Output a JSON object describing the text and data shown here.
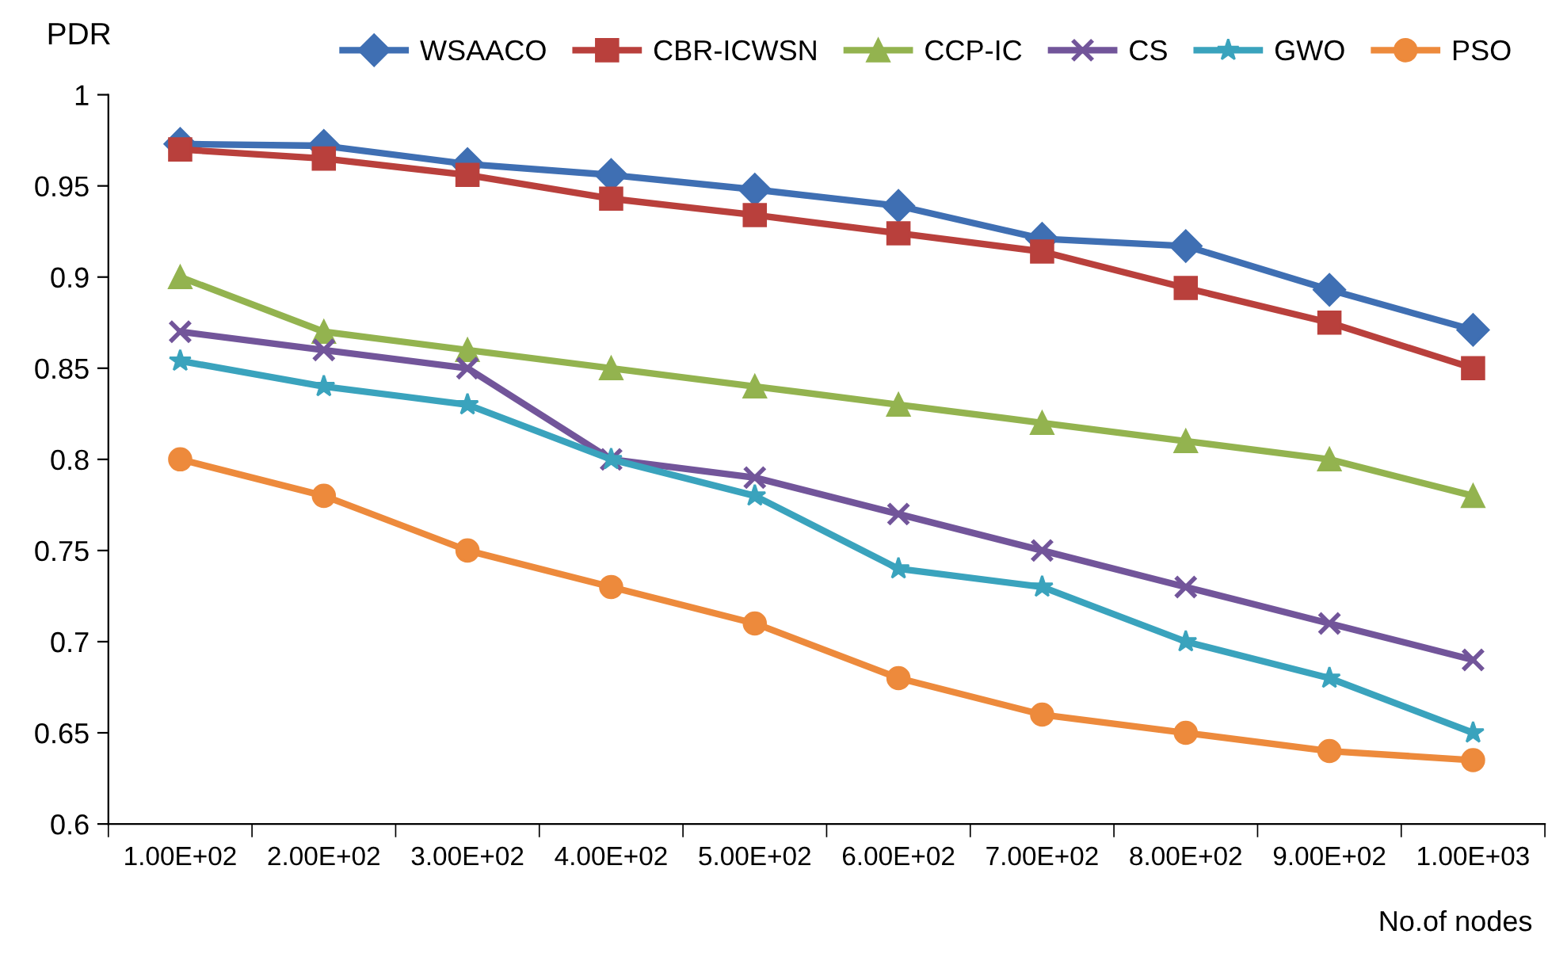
{
  "chart_data": {
    "type": "line",
    "ylabel": "PDR",
    "xlabel": "No.of nodes",
    "categories": [
      "1.00E+02",
      "2.00E+02",
      "3.00E+02",
      "4.00E+02",
      "5.00E+02",
      "6.00E+02",
      "7.00E+02",
      "8.00E+02",
      "9.00E+02",
      "1.00E+03"
    ],
    "series": [
      {
        "name": "WSAACO",
        "color": "#3f6fb3",
        "marker": "diamond",
        "values": [
          0.973,
          0.972,
          0.962,
          0.956,
          0.948,
          0.939,
          0.921,
          0.917,
          0.893,
          0.871
        ]
      },
      {
        "name": "CBR-ICWSN",
        "color": "#b9403c",
        "marker": "square",
        "values": [
          0.97,
          0.965,
          0.956,
          0.943,
          0.934,
          0.924,
          0.914,
          0.894,
          0.875,
          0.85
        ]
      },
      {
        "name": "CCP-IC",
        "color": "#93b34f",
        "marker": "triangle",
        "values": [
          0.9,
          0.87,
          0.86,
          0.85,
          0.84,
          0.83,
          0.82,
          0.81,
          0.8,
          0.78
        ]
      },
      {
        "name": "CS",
        "color": "#72559a",
        "marker": "cross",
        "values": [
          0.87,
          0.86,
          0.85,
          0.8,
          0.79,
          0.77,
          0.75,
          0.73,
          0.71,
          0.69
        ]
      },
      {
        "name": "GWO",
        "color": "#3aa3bd",
        "marker": "star",
        "values": [
          0.854,
          0.84,
          0.83,
          0.8,
          0.78,
          0.74,
          0.73,
          0.7,
          0.68,
          0.65
        ]
      },
      {
        "name": "PSO",
        "color": "#ed8a3c",
        "marker": "circle",
        "values": [
          0.8,
          0.78,
          0.75,
          0.73,
          0.71,
          0.68,
          0.66,
          0.65,
          0.64,
          0.635
        ]
      }
    ],
    "ylim": [
      0.6,
      1.0
    ],
    "yticks": [
      {
        "value": 0.6,
        "label": "0.6"
      },
      {
        "value": 0.65,
        "label": "0.65"
      },
      {
        "value": 0.7,
        "label": "0.7"
      },
      {
        "value": 0.75,
        "label": "0.75"
      },
      {
        "value": 0.8,
        "label": "0.8"
      },
      {
        "value": 0.85,
        "label": "0.85"
      },
      {
        "value": 0.9,
        "label": "0.9"
      },
      {
        "value": 0.95,
        "label": "0.95"
      },
      {
        "value": 1.0,
        "label": "1"
      }
    ],
    "grid": false,
    "legend": "top",
    "line_style": "solid"
  }
}
